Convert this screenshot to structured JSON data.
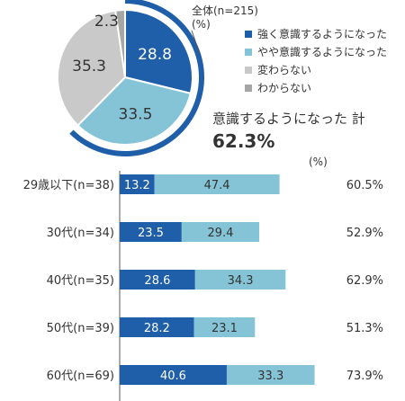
{
  "colors": {
    "strong": "#1f5faa",
    "somewhat": "#85c3d6",
    "unchanged": "#c9c9c9",
    "unknown": "#a6a6a6",
    "axis": "#595959",
    "text": "#333333"
  },
  "chart_data": [
    {
      "type": "pie",
      "annotation": "全体(n=215)",
      "unit": "(%)",
      "legend_position": "right",
      "slices": [
        {
          "label": "強く意識するようになった",
          "value": 28.8,
          "color": "#1f5faa"
        },
        {
          "label": "やや意識するようになった",
          "value": 33.5,
          "color": "#85c3d6"
        },
        {
          "label": "変わらない",
          "value": 35.3,
          "color": "#c9c9c9"
        },
        {
          "label": "わからない",
          "value": 2.3,
          "color": "#a6a6a6"
        }
      ],
      "total_label": "意識するようになった 計",
      "total_value": "62.3%"
    },
    {
      "type": "bar",
      "orientation": "horizontal",
      "stacked": true,
      "unit": "(%)",
      "categories": [
        "29歳以下(n=38)",
        "30代(n=34)",
        "40代(n=35)",
        "50代(n=39)",
        "60代(n=69)"
      ],
      "series": [
        {
          "name": "強く意識するようになった",
          "color": "#1f5faa",
          "values": [
            13.2,
            23.5,
            28.6,
            28.2,
            40.6
          ]
        },
        {
          "name": "やや意識するようになった",
          "color": "#85c3d6",
          "values": [
            47.4,
            29.4,
            34.3,
            23.1,
            33.3
          ]
        }
      ],
      "totals": [
        "60.5%",
        "52.9%",
        "62.9%",
        "51.3%",
        "73.9%"
      ],
      "xlim": [
        0,
        100
      ]
    }
  ]
}
